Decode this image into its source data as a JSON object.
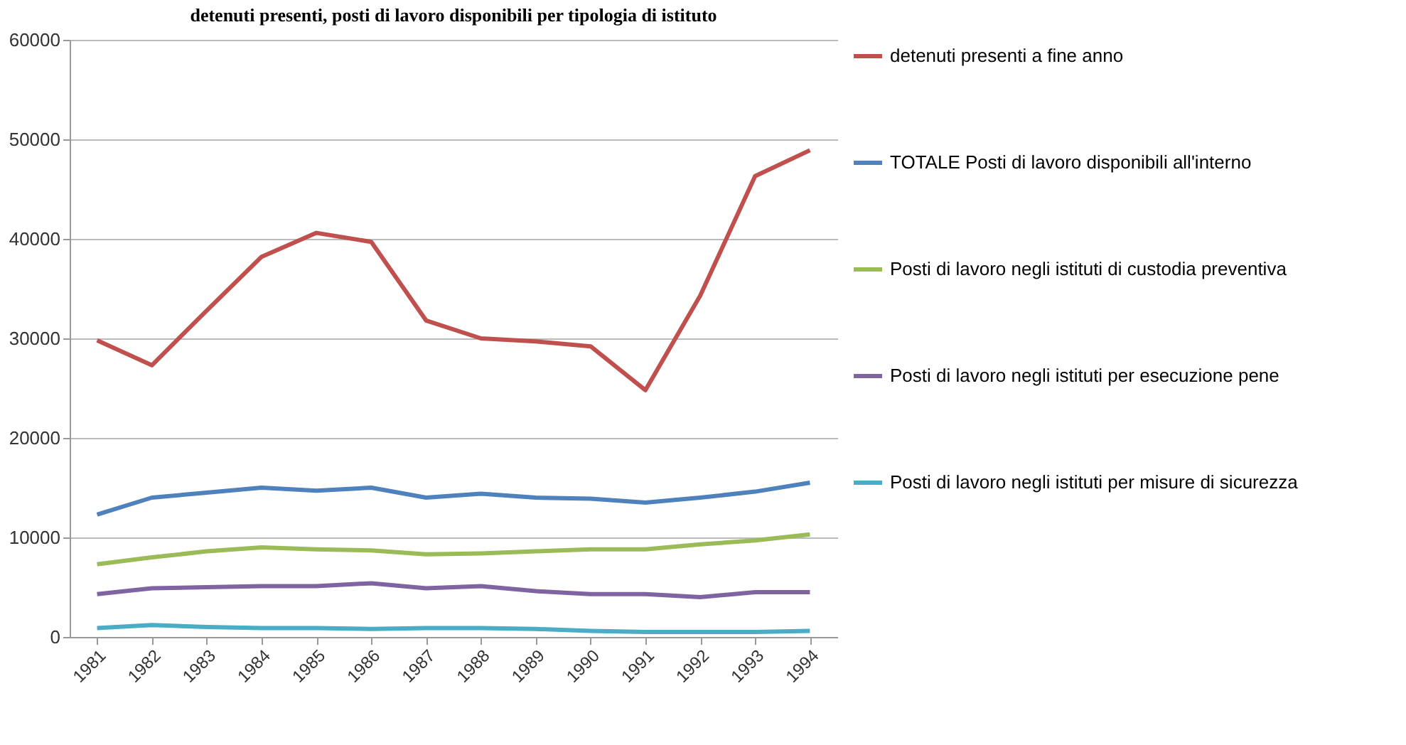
{
  "chart_data": {
    "type": "line",
    "title": "detenuti presenti, posti di lavoro disponibili per tipologia di istituto",
    "categories": [
      "1981",
      "1982",
      "1983",
      "1984",
      "1985",
      "1986",
      "1987",
      "1988",
      "1989",
      "1990",
      "1991",
      "1992",
      "1993",
      "1994"
    ],
    "series": [
      {
        "name": "detenuti presenti a fine anno",
        "color": "#c0504d",
        "values": [
          29800,
          27300,
          32800,
          38200,
          40600,
          39700,
          31800,
          30000,
          29700,
          29200,
          24800,
          34300,
          46300,
          48900
        ]
      },
      {
        "name": "TOTALE Posti di lavoro disponibili all'interno",
        "color": "#4f81bd",
        "values": [
          12300,
          14000,
          14500,
          15000,
          14700,
          15000,
          14000,
          14400,
          14000,
          13900,
          13500,
          14000,
          14600,
          15500
        ]
      },
      {
        "name": "Posti di lavoro negli istituti di custodia preventiva",
        "color": "#9bbb59",
        "values": [
          7300,
          8000,
          8600,
          9000,
          8800,
          8700,
          8300,
          8400,
          8600,
          8800,
          8800,
          9300,
          9700,
          10300
        ]
      },
      {
        "name": "Posti di lavoro negli istituti per esecuzione pene",
        "color": "#8064a2",
        "values": [
          4300,
          4900,
          5000,
          5100,
          5100,
          5400,
          4900,
          5100,
          4600,
          4300,
          4300,
          4000,
          4500,
          4500
        ]
      },
      {
        "name": "Posti di lavoro negli istituti per misure di sicurezza",
        "color": "#4bacc6",
        "values": [
          900,
          1200,
          1000,
          900,
          900,
          800,
          900,
          900,
          800,
          600,
          500,
          500,
          500,
          600
        ]
      }
    ],
    "ylim": [
      0,
      60000
    ],
    "yticks": [
      0,
      10000,
      20000,
      30000,
      40000,
      50000,
      60000
    ],
    "grid": "y",
    "legend": "right"
  }
}
